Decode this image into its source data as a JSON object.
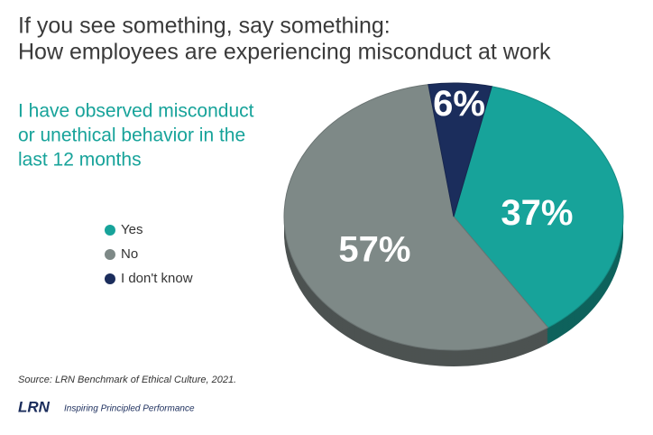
{
  "chart_data": {
    "type": "pie",
    "title": [
      "If you see something, say something:",
      "How employees are experiencing misconduct at work"
    ],
    "subtitle": [
      "I have observed misconduct",
      "or unethical behavior in the",
      "last 12 months"
    ],
    "categories": [
      "Yes",
      "No",
      "I don't know"
    ],
    "values": [
      37,
      57,
      6
    ],
    "value_labels": [
      "37%",
      "57%",
      "6%"
    ],
    "colors": [
      "#17a39a",
      "#7e8987",
      "#1b2d5c"
    ],
    "source": "Source: LRN Benchmark of Ethical Culture, 2021.",
    "logo": "LRN",
    "tagline": "Inspiring Principled Performance"
  }
}
